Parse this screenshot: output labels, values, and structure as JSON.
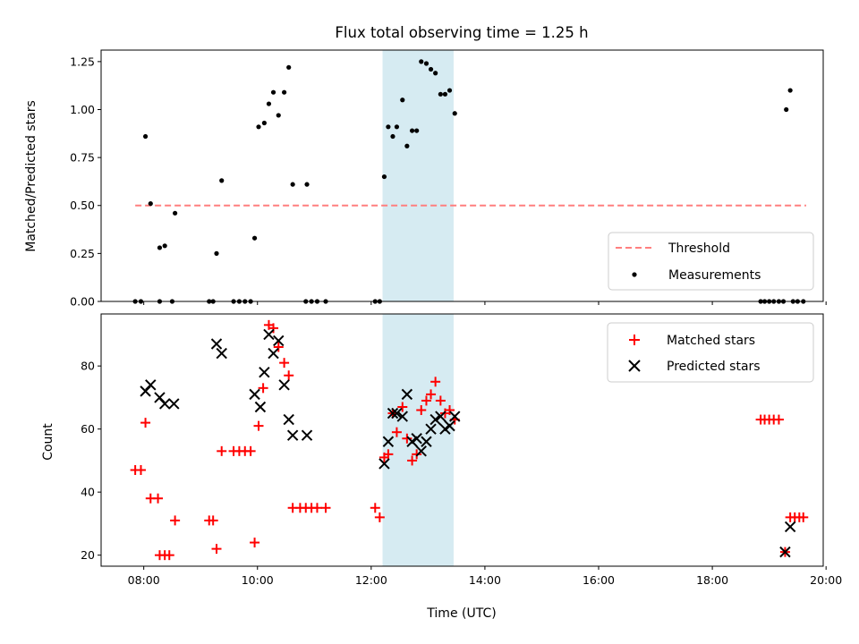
{
  "figure": {
    "title": "Flux total observing time = 1.25 h",
    "xlabel": "Time (UTC)"
  },
  "chart_data": [
    {
      "type": "scatter",
      "panel": "top",
      "ylabel": "Matched/Predicted stars",
      "x_axis": "time_utc_hours",
      "xlim": [
        7.25,
        19.95
      ],
      "ylim": [
        0,
        1.31
      ],
      "xticks": [
        8,
        10,
        12,
        14,
        16,
        18,
        20
      ],
      "xtick_labels": [
        "08:00",
        "10:00",
        "12:00",
        "14:00",
        "16:00",
        "18:00",
        "20:00"
      ],
      "xtick_labels_visible": false,
      "yticks": [
        0,
        0.25,
        0.5,
        0.75,
        1.0,
        1.25
      ],
      "ytick_labels": [
        "0.00",
        "0.25",
        "0.50",
        "0.75",
        "1.00",
        "1.25"
      ],
      "shaded_span": {
        "x0": 12.2,
        "x1": 13.45,
        "color": "#add8e6"
      },
      "threshold": {
        "name": "Threshold",
        "y": 0.5,
        "x0": 7.85,
        "x1": 19.65,
        "color": "#ff7f7f",
        "style": "dashed"
      },
      "series": [
        {
          "name": "Measurements",
          "marker": "dot",
          "color": "#000000",
          "points": [
            [
              7.85,
              0
            ],
            [
              7.95,
              0
            ],
            [
              8.03,
              0.86
            ],
            [
              8.12,
              0.51
            ],
            [
              8.28,
              0.28
            ],
            [
              8.28,
              0
            ],
            [
              8.37,
              0.29
            ],
            [
              8.5,
              0
            ],
            [
              8.55,
              0.46
            ],
            [
              9.15,
              0
            ],
            [
              9.22,
              0
            ],
            [
              9.28,
              0.25
            ],
            [
              9.37,
              0.63
            ],
            [
              9.58,
              0
            ],
            [
              9.68,
              0
            ],
            [
              9.78,
              0
            ],
            [
              9.88,
              0
            ],
            [
              9.95,
              0.33
            ],
            [
              10.02,
              0.91
            ],
            [
              10.12,
              0.93
            ],
            [
              10.2,
              1.03
            ],
            [
              10.28,
              1.09
            ],
            [
              10.37,
              0.97
            ],
            [
              10.47,
              1.09
            ],
            [
              10.55,
              1.22
            ],
            [
              10.62,
              0.61
            ],
            [
              10.85,
              0
            ],
            [
              10.87,
              0.61
            ],
            [
              10.95,
              0
            ],
            [
              11.05,
              0
            ],
            [
              11.2,
              0
            ],
            [
              12.07,
              0
            ],
            [
              12.15,
              0
            ],
            [
              12.23,
              0.65
            ],
            [
              12.3,
              0.91
            ],
            [
              12.38,
              0.86
            ],
            [
              12.45,
              0.91
            ],
            [
              12.55,
              1.05
            ],
            [
              12.63,
              0.81
            ],
            [
              12.72,
              0.89
            ],
            [
              12.8,
              0.89
            ],
            [
              12.88,
              1.25
            ],
            [
              12.97,
              1.24
            ],
            [
              13.05,
              1.21
            ],
            [
              13.13,
              1.19
            ],
            [
              13.22,
              1.08
            ],
            [
              13.3,
              1.08
            ],
            [
              13.38,
              1.1
            ],
            [
              13.47,
              0.98
            ],
            [
              18.85,
              0
            ],
            [
              18.92,
              0
            ],
            [
              19.0,
              0
            ],
            [
              19.08,
              0
            ],
            [
              19.17,
              0
            ],
            [
              19.25,
              0
            ],
            [
              19.3,
              1.0
            ],
            [
              19.37,
              1.1
            ],
            [
              19.42,
              0
            ],
            [
              19.5,
              0
            ],
            [
              19.6,
              0
            ]
          ]
        }
      ],
      "legend": {
        "position": "lower right",
        "entries": [
          "Threshold",
          "Measurements"
        ]
      }
    },
    {
      "type": "scatter",
      "panel": "bottom",
      "ylabel": "Count",
      "x_axis": "time_utc_hours",
      "xlim": [
        7.25,
        19.95
      ],
      "ylim": [
        16.5,
        96.5
      ],
      "xticks": [
        8,
        10,
        12,
        14,
        16,
        18,
        20
      ],
      "xtick_labels": [
        "08:00",
        "10:00",
        "12:00",
        "14:00",
        "16:00",
        "18:00",
        "20:00"
      ],
      "yticks": [
        20,
        40,
        60,
        80
      ],
      "ytick_labels": [
        "20",
        "40",
        "60",
        "80"
      ],
      "shaded_span": {
        "x0": 12.2,
        "x1": 13.45,
        "color": "#add8e6"
      },
      "series": [
        {
          "name": "Matched stars",
          "marker": "plus",
          "color": "#ff0000",
          "points": [
            [
              7.85,
              47
            ],
            [
              7.95,
              47
            ],
            [
              8.03,
              62
            ],
            [
              8.12,
              38
            ],
            [
              8.25,
              38
            ],
            [
              8.28,
              20
            ],
            [
              8.37,
              20
            ],
            [
              8.45,
              20
            ],
            [
              8.55,
              31
            ],
            [
              9.15,
              31
            ],
            [
              9.22,
              31
            ],
            [
              9.28,
              22
            ],
            [
              9.37,
              53
            ],
            [
              9.58,
              53
            ],
            [
              9.68,
              53
            ],
            [
              9.78,
              53
            ],
            [
              9.88,
              53
            ],
            [
              9.95,
              24
            ],
            [
              10.02,
              61
            ],
            [
              10.1,
              73
            ],
            [
              10.2,
              93
            ],
            [
              10.28,
              92
            ],
            [
              10.37,
              86
            ],
            [
              10.47,
              81
            ],
            [
              10.55,
              77
            ],
            [
              10.62,
              35
            ],
            [
              10.75,
              35
            ],
            [
              10.85,
              35
            ],
            [
              10.95,
              35
            ],
            [
              11.05,
              35
            ],
            [
              11.2,
              35
            ],
            [
              12.07,
              35
            ],
            [
              12.15,
              32
            ],
            [
              12.23,
              51
            ],
            [
              12.3,
              52
            ],
            [
              12.38,
              65
            ],
            [
              12.45,
              59
            ],
            [
              12.55,
              67
            ],
            [
              12.63,
              57
            ],
            [
              12.72,
              50
            ],
            [
              12.8,
              52
            ],
            [
              12.88,
              66
            ],
            [
              12.97,
              69
            ],
            [
              13.05,
              71
            ],
            [
              13.13,
              75
            ],
            [
              13.22,
              69
            ],
            [
              13.3,
              65
            ],
            [
              13.38,
              66
            ],
            [
              13.47,
              63
            ],
            [
              18.85,
              63
            ],
            [
              18.92,
              63
            ],
            [
              19.0,
              63
            ],
            [
              19.08,
              63
            ],
            [
              19.17,
              63
            ],
            [
              19.28,
              21
            ],
            [
              19.37,
              32
            ],
            [
              19.45,
              32
            ],
            [
              19.53,
              32
            ],
            [
              19.6,
              32
            ]
          ]
        },
        {
          "name": "Predicted stars",
          "marker": "x",
          "color": "#000000",
          "points": [
            [
              8.03,
              72
            ],
            [
              8.12,
              74
            ],
            [
              8.28,
              70
            ],
            [
              8.37,
              68
            ],
            [
              8.53,
              68
            ],
            [
              9.28,
              87
            ],
            [
              9.37,
              84
            ],
            [
              9.95,
              71
            ],
            [
              10.05,
              67
            ],
            [
              10.12,
              78
            ],
            [
              10.2,
              90
            ],
            [
              10.28,
              84
            ],
            [
              10.37,
              88
            ],
            [
              10.47,
              74
            ],
            [
              10.55,
              63
            ],
            [
              10.62,
              58
            ],
            [
              10.87,
              58
            ],
            [
              12.23,
              49
            ],
            [
              12.3,
              56
            ],
            [
              12.38,
              65
            ],
            [
              12.45,
              65
            ],
            [
              12.55,
              64
            ],
            [
              12.63,
              71
            ],
            [
              12.72,
              56
            ],
            [
              12.8,
              57
            ],
            [
              12.88,
              53
            ],
            [
              12.97,
              56
            ],
            [
              13.05,
              60
            ],
            [
              13.13,
              63
            ],
            [
              13.22,
              64
            ],
            [
              13.3,
              60
            ],
            [
              13.38,
              61
            ],
            [
              13.47,
              64
            ],
            [
              19.28,
              21
            ],
            [
              19.37,
              29
            ]
          ]
        }
      ],
      "legend": {
        "position": "upper right",
        "entries": [
          "Matched stars",
          "Predicted stars"
        ]
      }
    }
  ]
}
